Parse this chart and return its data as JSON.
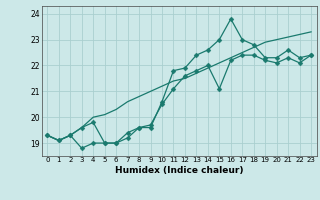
{
  "title": "",
  "xlabel": "Humidex (Indice chaleur)",
  "background_color": "#cce8e8",
  "grid_color": "#aacfcf",
  "line_color": "#1a7a6e",
  "x": [
    0,
    1,
    2,
    3,
    4,
    5,
    6,
    7,
    8,
    9,
    10,
    11,
    12,
    13,
    14,
    15,
    16,
    17,
    18,
    19,
    20,
    21,
    22,
    23
  ],
  "line1": [
    19.3,
    19.1,
    19.3,
    18.8,
    19.0,
    19.0,
    19.0,
    19.2,
    19.6,
    19.6,
    20.6,
    21.8,
    21.9,
    22.4,
    22.6,
    23.0,
    23.8,
    23.0,
    22.8,
    22.3,
    22.3,
    22.6,
    22.3,
    22.4
  ],
  "line2": [
    19.3,
    19.1,
    19.3,
    19.6,
    19.8,
    19.0,
    19.0,
    19.4,
    19.6,
    19.7,
    20.5,
    21.1,
    21.6,
    21.8,
    22.0,
    21.1,
    22.2,
    22.4,
    22.4,
    22.2,
    22.1,
    22.3,
    22.1,
    22.4
  ],
  "line3": [
    19.3,
    19.1,
    19.3,
    19.6,
    20.0,
    20.1,
    20.3,
    20.6,
    20.8,
    21.0,
    21.2,
    21.4,
    21.5,
    21.7,
    21.9,
    22.1,
    22.3,
    22.5,
    22.7,
    22.9,
    23.0,
    23.1,
    23.2,
    23.3
  ],
  "ylim": [
    18.5,
    24.3
  ],
  "xlim": [
    -0.5,
    23.5
  ],
  "yticks": [
    19,
    20,
    21,
    22,
    23,
    24
  ],
  "xticks": [
    0,
    1,
    2,
    3,
    4,
    5,
    6,
    7,
    8,
    9,
    10,
    11,
    12,
    13,
    14,
    15,
    16,
    17,
    18,
    19,
    20,
    21,
    22,
    23
  ],
  "markersize": 2.5,
  "linewidth": 0.9
}
